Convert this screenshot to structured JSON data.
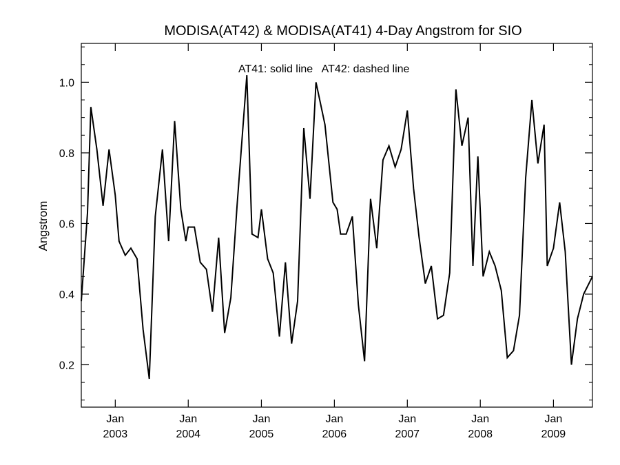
{
  "chart_data": {
    "type": "line",
    "title": "MODISA(AT42) & MODISA(AT41) 4-Day Angstrom for SIO",
    "annotation": "AT41: solid line   AT42: dashed line",
    "xlabel": "",
    "ylabel": "Angstrom",
    "xlim": [
      "2002-07-15",
      "2009-07-15"
    ],
    "ylim": [
      0.08,
      1.11
    ],
    "yticks": [
      0.2,
      0.4,
      0.6,
      0.8,
      1.0
    ],
    "ytick_labels": [
      "0.2",
      "0.4",
      "0.6",
      "0.8",
      "1.0"
    ],
    "xticks": [
      {
        "date": "2003-01-01",
        "month": "Jan",
        "year": "2003"
      },
      {
        "date": "2004-01-01",
        "month": "Jan",
        "year": "2004"
      },
      {
        "date": "2005-01-01",
        "month": "Jan",
        "year": "2005"
      },
      {
        "date": "2006-01-01",
        "month": "Jan",
        "year": "2006"
      },
      {
        "date": "2007-01-01",
        "month": "Jan",
        "year": "2007"
      },
      {
        "date": "2008-01-01",
        "month": "Jan",
        "year": "2008"
      },
      {
        "date": "2009-01-01",
        "month": "Jan",
        "year": "2009"
      }
    ],
    "grid": false,
    "series": [
      {
        "style": "solid",
        "color": "#000000",
        "points": [
          [
            "2002-07-15",
            0.38
          ],
          [
            "2002-08-15",
            0.63
          ],
          [
            "2002-09-01",
            0.93
          ],
          [
            "2002-10-01",
            0.81
          ],
          [
            "2002-11-01",
            0.65
          ],
          [
            "2002-12-01",
            0.81
          ],
          [
            "2003-01-01",
            0.68
          ],
          [
            "2003-01-20",
            0.55
          ],
          [
            "2003-02-20",
            0.51
          ],
          [
            "2003-03-20",
            0.53
          ],
          [
            "2003-04-20",
            0.5
          ],
          [
            "2003-05-20",
            0.3
          ],
          [
            "2003-06-20",
            0.16
          ],
          [
            "2003-07-20",
            0.62
          ],
          [
            "2003-08-25",
            0.81
          ],
          [
            "2003-09-25",
            0.55
          ],
          [
            "2003-10-25",
            0.89
          ],
          [
            "2003-11-25",
            0.64
          ],
          [
            "2003-12-20",
            0.55
          ],
          [
            "2004-01-01",
            0.59
          ],
          [
            "2004-02-01",
            0.59
          ],
          [
            "2004-03-01",
            0.49
          ],
          [
            "2004-04-01",
            0.47
          ],
          [
            "2004-05-01",
            0.35
          ],
          [
            "2004-06-01",
            0.56
          ],
          [
            "2004-07-01",
            0.29
          ],
          [
            "2004-08-01",
            0.39
          ],
          [
            "2004-09-01",
            0.65
          ],
          [
            "2004-10-20",
            1.02
          ],
          [
            "2004-11-15",
            0.57
          ],
          [
            "2004-12-15",
            0.56
          ],
          [
            "2005-01-01",
            0.64
          ],
          [
            "2005-02-01",
            0.5
          ],
          [
            "2005-03-01",
            0.46
          ],
          [
            "2005-04-01",
            0.28
          ],
          [
            "2005-05-01",
            0.49
          ],
          [
            "2005-06-01",
            0.26
          ],
          [
            "2005-07-01",
            0.38
          ],
          [
            "2005-08-01",
            0.87
          ],
          [
            "2005-09-01",
            0.67
          ],
          [
            "2005-10-01",
            1.0
          ],
          [
            "2005-11-15",
            0.88
          ],
          [
            "2005-12-25",
            0.66
          ],
          [
            "2006-01-15",
            0.64
          ],
          [
            "2006-02-01",
            0.57
          ],
          [
            "2006-03-01",
            0.57
          ],
          [
            "2006-04-01",
            0.62
          ],
          [
            "2006-05-01",
            0.37
          ],
          [
            "2006-06-01",
            0.21
          ],
          [
            "2006-07-01",
            0.67
          ],
          [
            "2006-08-01",
            0.53
          ],
          [
            "2006-09-01",
            0.78
          ],
          [
            "2006-10-01",
            0.82
          ],
          [
            "2006-11-01",
            0.76
          ],
          [
            "2006-12-01",
            0.81
          ],
          [
            "2007-01-01",
            0.92
          ],
          [
            "2007-02-01",
            0.7
          ],
          [
            "2007-03-01",
            0.56
          ],
          [
            "2007-04-01",
            0.43
          ],
          [
            "2007-05-01",
            0.48
          ],
          [
            "2007-06-01",
            0.33
          ],
          [
            "2007-07-01",
            0.34
          ],
          [
            "2007-08-01",
            0.46
          ],
          [
            "2007-09-01",
            0.98
          ],
          [
            "2007-10-01",
            0.82
          ],
          [
            "2007-11-01",
            0.9
          ],
          [
            "2007-11-25",
            0.48
          ],
          [
            "2007-12-20",
            0.79
          ],
          [
            "2008-01-15",
            0.45
          ],
          [
            "2008-02-15",
            0.52
          ],
          [
            "2008-03-15",
            0.48
          ],
          [
            "2008-04-15",
            0.41
          ],
          [
            "2008-05-15",
            0.22
          ],
          [
            "2008-06-15",
            0.24
          ],
          [
            "2008-07-15",
            0.34
          ],
          [
            "2008-08-15",
            0.73
          ],
          [
            "2008-09-15",
            0.95
          ],
          [
            "2008-10-15",
            0.77
          ],
          [
            "2008-11-15",
            0.88
          ],
          [
            "2008-12-01",
            0.48
          ],
          [
            "2009-01-01",
            0.53
          ],
          [
            "2009-02-01",
            0.66
          ],
          [
            "2009-03-01",
            0.52
          ],
          [
            "2009-04-01",
            0.2
          ],
          [
            "2009-05-01",
            0.33
          ],
          [
            "2009-06-01",
            0.4
          ],
          [
            "2009-07-15",
            0.45
          ]
        ]
      }
    ]
  }
}
